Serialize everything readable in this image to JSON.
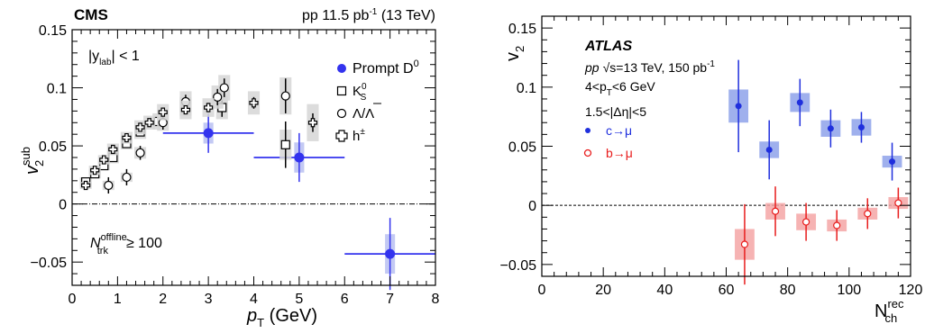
{
  "chart_data": [
    {
      "type": "scatter",
      "experiment": "CMS",
      "dataset": "pp 11.5 pb",
      "dataset_sup": "-1",
      "dataset_tail": "(13 TeV)",
      "xlabel_main": "p",
      "xlabel_sub": "T",
      "xlabel_unit": "(GeV)",
      "ylabel_main": "v",
      "ylabel_sup": "sub",
      "ylabel_sub": "2",
      "rap_pre": "|y",
      "rap_sub": "lab",
      "rap_post": "| < 1",
      "ntrk_main": "N",
      "ntrk_sup": "offline",
      "ntrk_sub": "trk",
      "ntrk_post": "≥ 100",
      "xlim": [
        0,
        8
      ],
      "ylim": [
        -0.07,
        0.15
      ],
      "x_ticks": [
        "0",
        "1",
        "2",
        "3",
        "4",
        "5",
        "6",
        "7",
        "8"
      ],
      "y_ticks": [
        "−0.05",
        "0",
        "0.05",
        "0.1",
        "0.15"
      ],
      "y_tick_values": [
        -0.05,
        0,
        0.05,
        0.1,
        0.15
      ],
      "legend_position": "top-right",
      "series": [
        {
          "name": "Prompt D",
          "name_sup": "0",
          "marker": "filled-circle",
          "color": "#3333ee",
          "points": [
            {
              "x": 3.0,
              "y": 0.061,
              "xerr": [
                1.0,
                1.0
              ],
              "yerr": 0.017,
              "syst": 0.009
            },
            {
              "x": 5.0,
              "y": 0.04,
              "xerr": [
                1.0,
                1.0
              ],
              "yerr": 0.021,
              "syst": 0.013
            },
            {
              "x": 7.0,
              "y": -0.043,
              "xerr": [
                1.0,
                1.0
              ],
              "yerr": 0.031,
              "syst": 0.017
            }
          ]
        },
        {
          "name": "K",
          "name_sup": "0",
          "name_sub": "S",
          "marker": "open-square",
          "color": "#000000",
          "points": [
            {
              "x": 0.3,
              "y": 0.019,
              "yerr": 0.003,
              "syst": 0.004
            },
            {
              "x": 0.5,
              "y": 0.026,
              "yerr": 0.003,
              "syst": 0.004
            },
            {
              "x": 0.7,
              "y": 0.033,
              "yerr": 0.003,
              "syst": 0.004
            },
            {
              "x": 0.9,
              "y": 0.04,
              "yerr": 0.003,
              "syst": 0.005
            },
            {
              "x": 1.2,
              "y": 0.052,
              "yerr": 0.003,
              "syst": 0.005
            },
            {
              "x": 1.5,
              "y": 0.062,
              "yerr": 0.003,
              "syst": 0.006
            },
            {
              "x": 1.9,
              "y": 0.071,
              "yerr": 0.004,
              "syst": 0.007
            },
            {
              "x": 2.5,
              "y": 0.084,
              "yerr": 0.005,
              "syst": 0.008
            },
            {
              "x": 3.3,
              "y": 0.083,
              "yerr": 0.008,
              "syst": 0.01
            },
            {
              "x": 4.7,
              "y": 0.051,
              "yerr": 0.02,
              "syst": 0.013
            }
          ]
        },
        {
          "name": "Λ/Λ",
          "marker": "open-circle",
          "color": "#000000",
          "points": [
            {
              "x": 0.8,
              "y": 0.016,
              "yerr": 0.007,
              "syst": 0.004
            },
            {
              "x": 1.2,
              "y": 0.023,
              "yerr": 0.007,
              "syst": 0.004
            },
            {
              "x": 1.5,
              "y": 0.044,
              "yerr": 0.006,
              "syst": 0.005
            },
            {
              "x": 2.0,
              "y": 0.07,
              "yerr": 0.006,
              "syst": 0.007
            },
            {
              "x": 2.5,
              "y": 0.088,
              "yerr": 0.006,
              "syst": 0.009
            },
            {
              "x": 3.2,
              "y": 0.092,
              "yerr": 0.007,
              "syst": 0.01
            },
            {
              "x": 3.35,
              "y": 0.1,
              "yerr": 0.008,
              "syst": 0.011
            },
            {
              "x": 4.7,
              "y": 0.093,
              "yerr": 0.015,
              "syst": 0.016
            }
          ]
        },
        {
          "name": "h",
          "name_sup": "±",
          "marker": "open-cross",
          "color": "#000000",
          "points": [
            {
              "x": 0.3,
              "y": 0.016,
              "yerr": 0.002,
              "syst": 0.003
            },
            {
              "x": 0.5,
              "y": 0.029,
              "yerr": 0.002,
              "syst": 0.004
            },
            {
              "x": 0.7,
              "y": 0.038,
              "yerr": 0.002,
              "syst": 0.004
            },
            {
              "x": 0.9,
              "y": 0.047,
              "yerr": 0.002,
              "syst": 0.005
            },
            {
              "x": 1.2,
              "y": 0.057,
              "yerr": 0.002,
              "syst": 0.005
            },
            {
              "x": 1.5,
              "y": 0.066,
              "yerr": 0.002,
              "syst": 0.006
            },
            {
              "x": 1.7,
              "y": 0.07,
              "yerr": 0.003,
              "syst": 0.006
            },
            {
              "x": 2.0,
              "y": 0.079,
              "yerr": 0.003,
              "syst": 0.007
            },
            {
              "x": 2.5,
              "y": 0.081,
              "yerr": 0.003,
              "syst": 0.008
            },
            {
              "x": 3.0,
              "y": 0.083,
              "yerr": 0.004,
              "syst": 0.008
            },
            {
              "x": 4.0,
              "y": 0.087,
              "yerr": 0.005,
              "syst": 0.01
            },
            {
              "x": 5.3,
              "y": 0.07,
              "yerr": 0.008,
              "syst": 0.016
            }
          ]
        }
      ],
      "reference_line": 0
    },
    {
      "type": "scatter",
      "experiment": "ATLAS",
      "sqrt_pre": "pp",
      "sqrt_label": "s",
      "sqrt_post": "=13 TeV, 150 pb",
      "sqrt_sup": "-1",
      "pt_pre": "4<p",
      "pt_sub": "T",
      "pt_post": "<6 GeV",
      "eta_cut": "1.5<|Δη|<5",
      "xlabel_main": "N",
      "xlabel_sup": "rec",
      "xlabel_sub": "ch",
      "ylabel_main": "v",
      "ylabel_sub": "2",
      "xlim": [
        0,
        120
      ],
      "ylim": [
        -0.06,
        0.16
      ],
      "x_ticks": [
        "0",
        "20",
        "40",
        "60",
        "80",
        "100",
        "120"
      ],
      "y_ticks": [
        "−0.05",
        "0",
        "0.05",
        "0.1",
        "0.15"
      ],
      "y_tick_values": [
        -0.05,
        0,
        0.05,
        0.1,
        0.15
      ],
      "legend_position": "top-left",
      "series": [
        {
          "name": "c→μ",
          "marker": "filled-circle",
          "color": "#1f2fdd",
          "syst_color": "#8ea2ea",
          "points": [
            {
              "x": 64,
              "y": 0.084,
              "yerr": 0.039,
              "syst": 0.014
            },
            {
              "x": 74,
              "y": 0.047,
              "yerr": 0.025,
              "syst": 0.007
            },
            {
              "x": 84,
              "y": 0.087,
              "yerr": 0.02,
              "syst": 0.008
            },
            {
              "x": 94,
              "y": 0.065,
              "yerr": 0.016,
              "syst": 0.007
            },
            {
              "x": 104,
              "y": 0.066,
              "yerr": 0.013,
              "syst": 0.007
            },
            {
              "x": 114,
              "y": 0.037,
              "yerr": 0.016,
              "syst": 0.005
            }
          ]
        },
        {
          "name": "b→μ",
          "marker": "open-circle",
          "color": "#e81c1c",
          "syst_color": "#f4a6a6",
          "points": [
            {
              "x": 66,
              "y": -0.033,
              "yerr": 0.034,
              "syst": 0.013
            },
            {
              "x": 76,
              "y": -0.005,
              "yerr": 0.021,
              "syst": 0.007
            },
            {
              "x": 86,
              "y": -0.014,
              "yerr": 0.016,
              "syst": 0.007
            },
            {
              "x": 96,
              "y": -0.017,
              "yerr": 0.013,
              "syst": 0.005
            },
            {
              "x": 106,
              "y": -0.007,
              "yerr": 0.013,
              "syst": 0.005
            },
            {
              "x": 116,
              "y": 0.002,
              "yerr": 0.013,
              "syst": 0.005
            }
          ]
        }
      ],
      "reference_line": 0
    }
  ]
}
